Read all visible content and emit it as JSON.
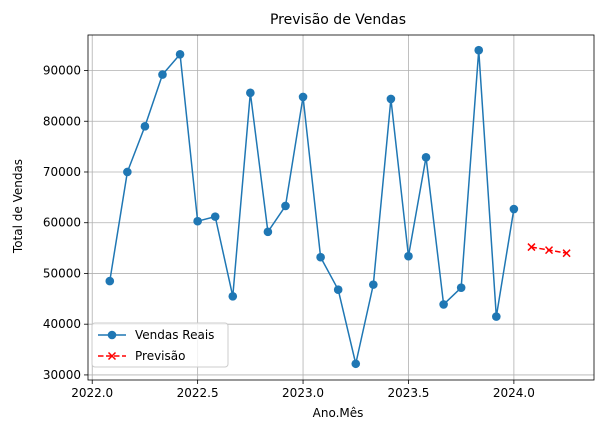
{
  "chart_data": {
    "type": "line",
    "title": "Previsão de Vendas",
    "xlabel": "Ano.Mês",
    "ylabel": "Total de Vendas",
    "xlim": [
      2021.98,
      2024.38
    ],
    "ylim": [
      29000,
      97000
    ],
    "grid": true,
    "legend_position": "lower-left",
    "x_ticks": [
      2022.0,
      2022.5,
      2023.0,
      2023.5,
      2024.0
    ],
    "x_tick_labels": [
      "2022.0",
      "2022.5",
      "2023.0",
      "2023.5",
      "2024.0"
    ],
    "y_ticks": [
      30000,
      40000,
      50000,
      60000,
      70000,
      80000,
      90000
    ],
    "y_tick_labels": [
      "30000",
      "40000",
      "50000",
      "60000",
      "70000",
      "80000",
      "90000"
    ],
    "series": [
      {
        "name": "Vendas Reais",
        "color": "#1f77b4",
        "marker": "circle",
        "linestyle": "solid",
        "x": [
          2022.0833,
          2022.1667,
          2022.25,
          2022.3333,
          2022.4167,
          2022.5,
          2022.5833,
          2022.6667,
          2022.75,
          2022.8333,
          2022.9167,
          2023.0,
          2023.0833,
          2023.1667,
          2023.25,
          2023.3333,
          2023.4167,
          2023.5,
          2023.5833,
          2023.6667,
          2023.75,
          2023.8333,
          2023.9167,
          2024.0
        ],
        "y": [
          48500,
          70000,
          79000,
          89200,
          93200,
          60300,
          61200,
          45500,
          85600,
          58200,
          63300,
          84800,
          53200,
          46800,
          32200,
          47800,
          84400,
          53400,
          72900,
          43900,
          47200,
          94000,
          41500,
          62700
        ]
      },
      {
        "name": "Previsão",
        "color": "#ff0000",
        "marker": "x",
        "linestyle": "dashed",
        "x": [
          2024.0833,
          2024.1667,
          2024.25
        ],
        "y": [
          55200,
          54600,
          54000
        ]
      }
    ]
  }
}
